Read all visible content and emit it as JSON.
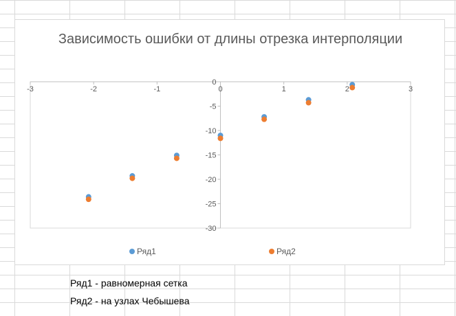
{
  "chart_data": {
    "type": "scatter",
    "title": "Зависимость ошибки от длины отрезка интерполяции",
    "xlim": [
      -3,
      3
    ],
    "ylim": [
      -30,
      0
    ],
    "x_ticks": [
      -3,
      -2,
      -1,
      0,
      1,
      2,
      3
    ],
    "y_ticks": [
      0,
      -5,
      -10,
      -15,
      -20,
      -25,
      -30
    ],
    "grid": false,
    "legend_position": "bottom",
    "series": [
      {
        "name": "Ряд1",
        "color": "#5B9BD5",
        "points": [
          {
            "x": -2.08,
            "y": -23.6
          },
          {
            "x": -1.39,
            "y": -19.3
          },
          {
            "x": -0.69,
            "y": -15.1
          },
          {
            "x": 0.0,
            "y": -11.0
          },
          {
            "x": 0.69,
            "y": -7.2
          },
          {
            "x": 1.39,
            "y": -3.7
          },
          {
            "x": 2.08,
            "y": -0.6
          }
        ]
      },
      {
        "name": "Ряд2",
        "color": "#ED7D31",
        "points": [
          {
            "x": -2.08,
            "y": -24.1
          },
          {
            "x": -1.39,
            "y": -19.8
          },
          {
            "x": -0.69,
            "y": -15.7
          },
          {
            "x": 0.0,
            "y": -11.6
          },
          {
            "x": 0.69,
            "y": -7.7
          },
          {
            "x": 1.39,
            "y": -4.3
          },
          {
            "x": 2.08,
            "y": -1.2
          }
        ]
      }
    ]
  },
  "notes": {
    "row1": "Ряд1 - равномерная сетка",
    "row2": "Ряд2 - на узлах Чебышева"
  }
}
